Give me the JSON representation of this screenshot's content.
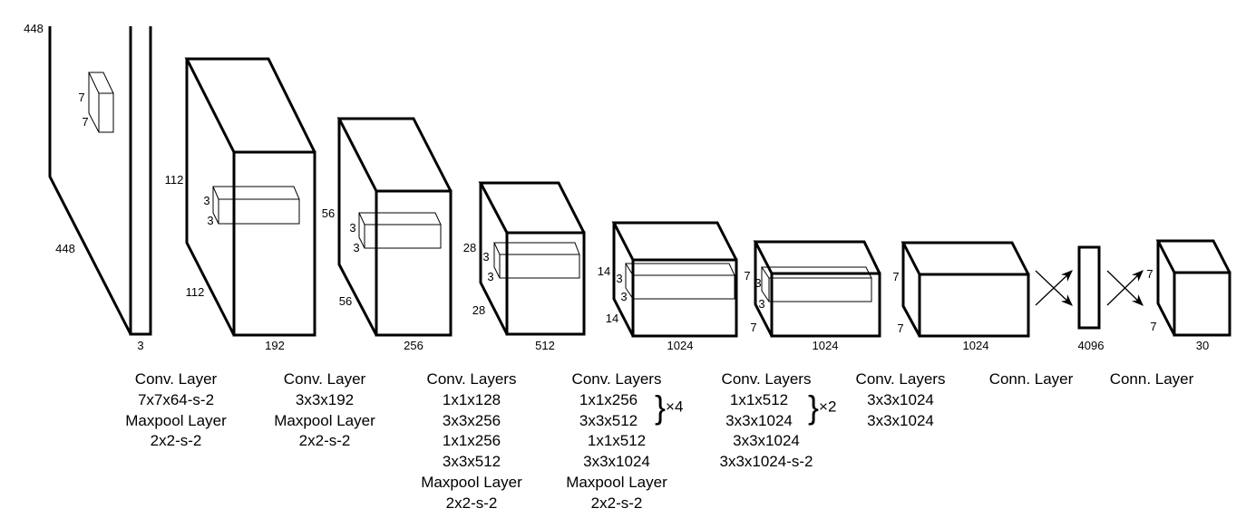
{
  "dimension_labels": [
    "448",
    "7",
    "7",
    "448",
    "3",
    "112",
    "3",
    "3",
    "112",
    "192",
    "56",
    "3",
    "3",
    "56",
    "256",
    "28",
    "3",
    "3",
    "28",
    "512",
    "14",
    "3",
    "3",
    "14",
    "1024",
    "7",
    "3",
    "3",
    "7",
    "1024",
    "7",
    "7",
    "1024",
    "4096",
    "7",
    "7",
    "30"
  ],
  "captions": [
    [
      "Conv. Layer",
      "7x7x64-s-2",
      "Maxpool Layer",
      "2x2-s-2"
    ],
    [
      "Conv. Layer",
      "3x3x192",
      "Maxpool Layer",
      "2x2-s-2"
    ],
    [
      "Conv. Layers",
      "1x1x128",
      "3x3x256",
      "1x1x256",
      "3x3x512",
      "Maxpool Layer",
      "2x2-s-2"
    ],
    [
      "Conv. Layers",
      "1x1x256",
      "3x3x512",
      "1x1x512",
      "3x3x1024",
      "Maxpool Layer",
      "2x2-s-2"
    ],
    [
      "Conv. Layers",
      "1x1x512",
      "3x3x1024",
      "3x3x1024",
      "3x3x1024-s-2"
    ],
    [
      "Conv. Layers",
      "3x3x1024",
      "3x3x1024"
    ],
    [
      "Conn. Layer"
    ],
    [
      "Conn. Layer"
    ]
  ],
  "repeats": [
    "×4",
    "×2"
  ],
  "colors": {
    "stroke": "#000000",
    "background": "#ffffff"
  }
}
